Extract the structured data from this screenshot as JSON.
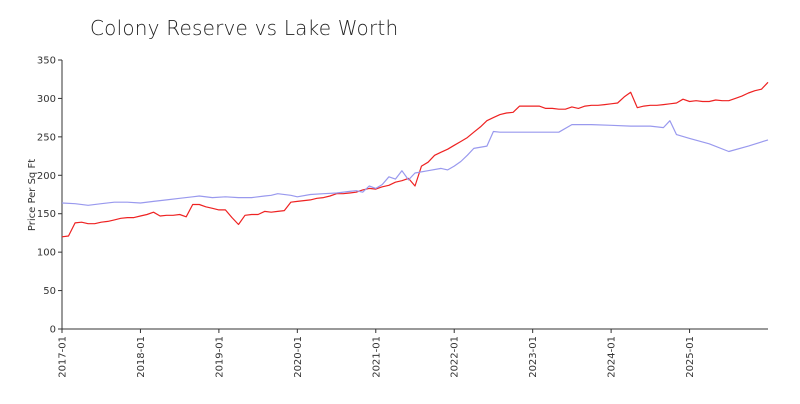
{
  "chart_data": {
    "type": "line",
    "title": "Colony Reserve vs Lake Worth",
    "xlabel": "",
    "ylabel": "Price Per Sq Ft",
    "ylim": [
      0,
      350
    ],
    "yticks": [
      "0",
      "50",
      "100",
      "150",
      "200",
      "250",
      "300",
      "350"
    ],
    "xticks": [
      "2017-01",
      "2018-01",
      "2019-01",
      "2020-01",
      "2021-01",
      "2022-01",
      "2023-01",
      "2024-01",
      "2025-01"
    ],
    "xrange": [
      "2017-01",
      "2025-12"
    ],
    "grid": false,
    "legend": false,
    "series": [
      {
        "color": "#ee2222",
        "points": [
          [
            "2017-01",
            120
          ],
          [
            "2017-02",
            121
          ],
          [
            "2017-03",
            138
          ],
          [
            "2017-04",
            139
          ],
          [
            "2017-05",
            137
          ],
          [
            "2017-06",
            137
          ],
          [
            "2017-07",
            139
          ],
          [
            "2017-08",
            140
          ],
          [
            "2017-09",
            142
          ],
          [
            "2017-10",
            144
          ],
          [
            "2017-11",
            145
          ],
          [
            "2017-12",
            145
          ],
          [
            "2018-01",
            147
          ],
          [
            "2018-02",
            149
          ],
          [
            "2018-03",
            152
          ],
          [
            "2018-04",
            147
          ],
          [
            "2018-05",
            148
          ],
          [
            "2018-06",
            148
          ],
          [
            "2018-07",
            149
          ],
          [
            "2018-08",
            146
          ],
          [
            "2018-09",
            162
          ],
          [
            "2018-10",
            162
          ],
          [
            "2018-11",
            159
          ],
          [
            "2018-12",
            157
          ],
          [
            "2019-01",
            155
          ],
          [
            "2019-02",
            155
          ],
          [
            "2019-03",
            145
          ],
          [
            "2019-04",
            136
          ],
          [
            "2019-05",
            148
          ],
          [
            "2019-06",
            149
          ],
          [
            "2019-07",
            149
          ],
          [
            "2019-08",
            153
          ],
          [
            "2019-09",
            152
          ],
          [
            "2019-10",
            153
          ],
          [
            "2019-11",
            154
          ],
          [
            "2019-12",
            165
          ],
          [
            "2020-01",
            166
          ],
          [
            "2020-02",
            167
          ],
          [
            "2020-03",
            168
          ],
          [
            "2020-04",
            170
          ],
          [
            "2020-05",
            171
          ],
          [
            "2020-06",
            173
          ],
          [
            "2020-07",
            176
          ],
          [
            "2020-08",
            176
          ],
          [
            "2020-09",
            177
          ],
          [
            "2020-10",
            178
          ],
          [
            "2020-11",
            181
          ],
          [
            "2020-12",
            183
          ],
          [
            "2021-01",
            182
          ],
          [
            "2021-02",
            185
          ],
          [
            "2021-03",
            187
          ],
          [
            "2021-04",
            191
          ],
          [
            "2021-05",
            193
          ],
          [
            "2021-06",
            196
          ],
          [
            "2021-07",
            186
          ],
          [
            "2021-08",
            212
          ],
          [
            "2021-09",
            217
          ],
          [
            "2021-10",
            226
          ],
          [
            "2021-11",
            230
          ],
          [
            "2021-12",
            234
          ],
          [
            "2022-01",
            239
          ],
          [
            "2022-02",
            244
          ],
          [
            "2022-03",
            249
          ],
          [
            "2022-04",
            256
          ],
          [
            "2022-05",
            263
          ],
          [
            "2022-06",
            271
          ],
          [
            "2022-07",
            275
          ],
          [
            "2022-08",
            279
          ],
          [
            "2022-09",
            281
          ],
          [
            "2022-10",
            282
          ],
          [
            "2022-11",
            290
          ],
          [
            "2022-12",
            290
          ],
          [
            "2023-01",
            290
          ],
          [
            "2023-02",
            290
          ],
          [
            "2023-03",
            287
          ],
          [
            "2023-04",
            287
          ],
          [
            "2023-05",
            286
          ],
          [
            "2023-06",
            286
          ],
          [
            "2023-07",
            289
          ],
          [
            "2023-08",
            287
          ],
          [
            "2023-09",
            290
          ],
          [
            "2023-10",
            291
          ],
          [
            "2023-11",
            291
          ],
          [
            "2023-12",
            292
          ],
          [
            "2024-01",
            293
          ],
          [
            "2024-02",
            294
          ],
          [
            "2024-03",
            302
          ],
          [
            "2024-04",
            308
          ],
          [
            "2024-05",
            288
          ],
          [
            "2024-06",
            290
          ],
          [
            "2024-07",
            291
          ],
          [
            "2024-08",
            291
          ],
          [
            "2024-09",
            292
          ],
          [
            "2024-10",
            293
          ],
          [
            "2024-11",
            294
          ],
          [
            "2024-12",
            299
          ],
          [
            "2025-01",
            296
          ],
          [
            "2025-02",
            297
          ],
          [
            "2025-03",
            296
          ],
          [
            "2025-04",
            296
          ],
          [
            "2025-05",
            298
          ],
          [
            "2025-06",
            297
          ],
          [
            "2025-07",
            297
          ],
          [
            "2025-08",
            300
          ],
          [
            "2025-09",
            303
          ],
          [
            "2025-10",
            307
          ],
          [
            "2025-11",
            310
          ],
          [
            "2025-12",
            312
          ],
          [
            "2026-01",
            321
          ]
        ]
      },
      {
        "color": "#9999ee",
        "points": [
          [
            "2017-01",
            164
          ],
          [
            "2017-03",
            163
          ],
          [
            "2017-05",
            161
          ],
          [
            "2017-07",
            163
          ],
          [
            "2017-09",
            165
          ],
          [
            "2017-11",
            165
          ],
          [
            "2018-01",
            164
          ],
          [
            "2018-03",
            166
          ],
          [
            "2018-05",
            168
          ],
          [
            "2018-07",
            170
          ],
          [
            "2018-09",
            172
          ],
          [
            "2018-10",
            173
          ],
          [
            "2018-12",
            171
          ],
          [
            "2019-02",
            172
          ],
          [
            "2019-04",
            171
          ],
          [
            "2019-06",
            171
          ],
          [
            "2019-08",
            173
          ],
          [
            "2019-09",
            174
          ],
          [
            "2019-10",
            176
          ],
          [
            "2019-12",
            174
          ],
          [
            "2020-01",
            172
          ],
          [
            "2020-03",
            175
          ],
          [
            "2020-05",
            176
          ],
          [
            "2020-07",
            177
          ],
          [
            "2020-09",
            179
          ],
          [
            "2020-10",
            180
          ],
          [
            "2020-11",
            178
          ],
          [
            "2020-12",
            186
          ],
          [
            "2021-01",
            183
          ],
          [
            "2021-02",
            188
          ],
          [
            "2021-03",
            198
          ],
          [
            "2021-04",
            195
          ],
          [
            "2021-05",
            206
          ],
          [
            "2021-06",
            194
          ],
          [
            "2021-07",
            203
          ],
          [
            "2021-09",
            206
          ],
          [
            "2021-11",
            209
          ],
          [
            "2021-12",
            207
          ],
          [
            "2022-01",
            212
          ],
          [
            "2022-02",
            218
          ],
          [
            "2022-03",
            226
          ],
          [
            "2022-04",
            235
          ],
          [
            "2022-06",
            238
          ],
          [
            "2022-07",
            257
          ],
          [
            "2022-08",
            256
          ],
          [
            "2022-10",
            256
          ],
          [
            "2023-01",
            256
          ],
          [
            "2023-04",
            256
          ],
          [
            "2023-05",
            256
          ],
          [
            "2023-07",
            266
          ],
          [
            "2023-10",
            266
          ],
          [
            "2024-01",
            265
          ],
          [
            "2024-04",
            264
          ],
          [
            "2024-07",
            264
          ],
          [
            "2024-09",
            262
          ],
          [
            "2024-10",
            271
          ],
          [
            "2024-11",
            253
          ],
          [
            "2025-01",
            248
          ],
          [
            "2025-04",
            241
          ],
          [
            "2025-07",
            231
          ],
          [
            "2025-10",
            238
          ],
          [
            "2026-01",
            246
          ]
        ]
      }
    ]
  }
}
